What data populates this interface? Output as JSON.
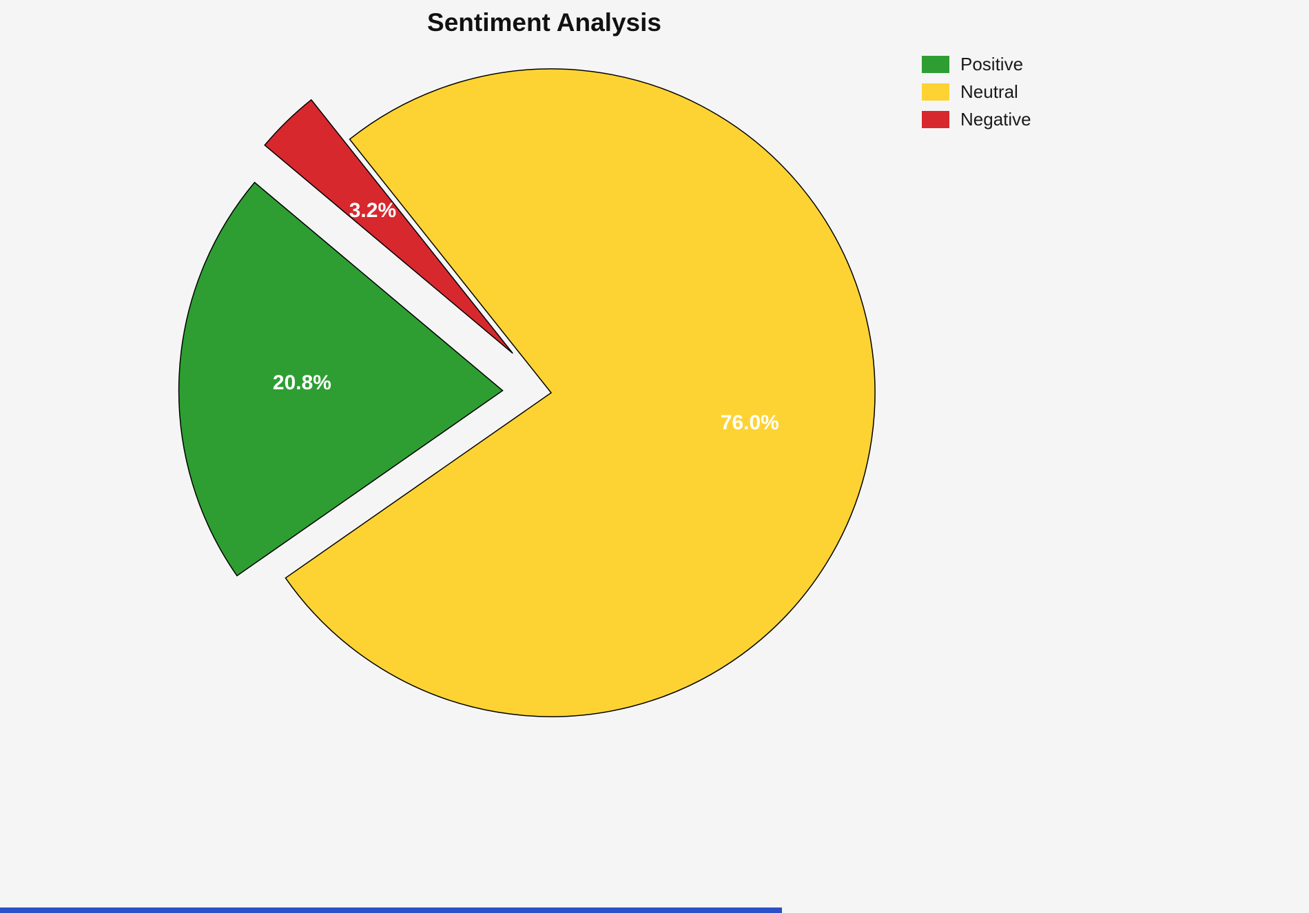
{
  "page": {
    "background": "#f5f5f5"
  },
  "chart_data": {
    "type": "pie",
    "title": "Sentiment Analysis",
    "slices": [
      {
        "label": "Positive",
        "value": 20.8,
        "pct_label": "20.8%",
        "color": "#2e9e33",
        "explode": 0.15
      },
      {
        "label": "Neutral",
        "value": 76.0,
        "pct_label": "76.0%",
        "color": "#fdd334",
        "explode": 0.0
      },
      {
        "label": "Negative",
        "value": 3.2,
        "pct_label": "3.2%",
        "color": "#d7282e",
        "explode": 0.17
      }
    ],
    "start_angle": 140,
    "direction": "counterclockwise",
    "legend_position": "upper right",
    "legend_entries": [
      "Positive",
      "Neutral",
      "Negative"
    ],
    "pct_label_color": "#ffffff",
    "edge_color": "#000000",
    "pct_label_distance": 0.62
  },
  "footer": {
    "accent_bar_color": "#2b50c8"
  }
}
